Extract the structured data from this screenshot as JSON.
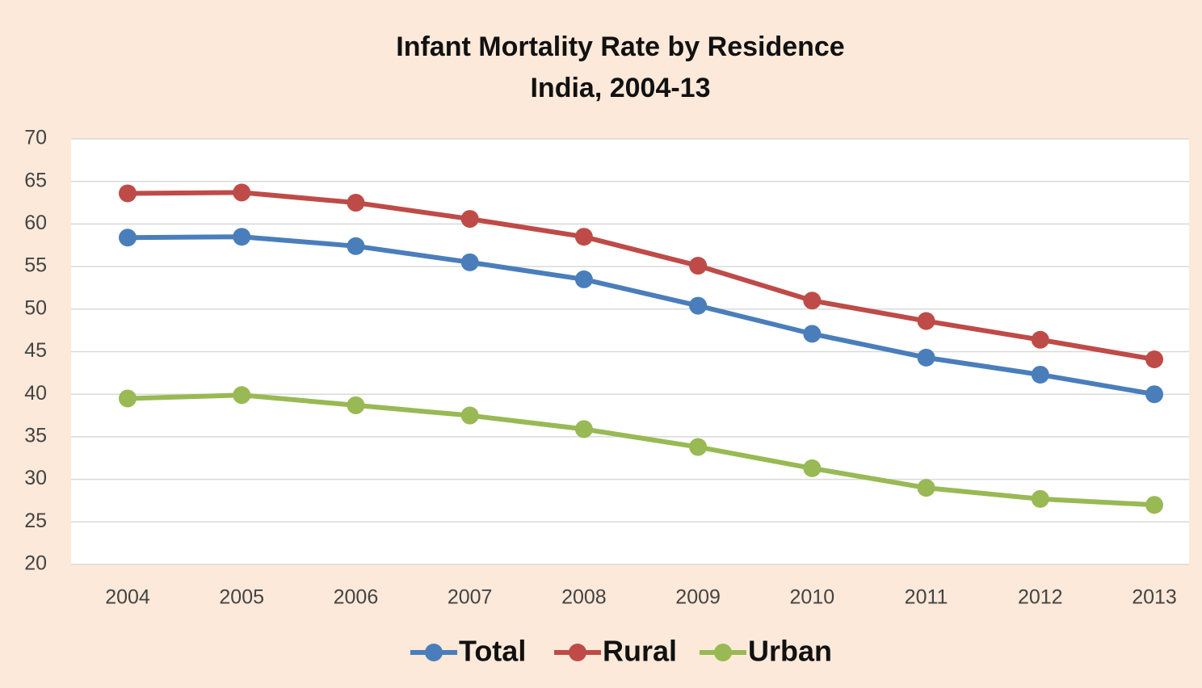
{
  "chart_data": {
    "type": "line",
    "title": "Infant Mortality Rate by Residence",
    "subtitle": "India, 2004-13",
    "categories": [
      "2004",
      "2005",
      "2006",
      "2007",
      "2008",
      "2009",
      "2010",
      "2011",
      "2012",
      "2013"
    ],
    "series": [
      {
        "name": "Total",
        "color": "#4a7ebb",
        "values": [
          58.4,
          58.5,
          57.4,
          55.5,
          53.5,
          50.4,
          47.1,
          44.3,
          42.3,
          40.0
        ]
      },
      {
        "name": "Rural",
        "color": "#be4b48",
        "values": [
          63.6,
          63.7,
          62.5,
          60.6,
          58.5,
          55.1,
          51.0,
          48.6,
          46.4,
          44.1
        ]
      },
      {
        "name": "Urban",
        "color": "#98b954",
        "values": [
          39.5,
          39.9,
          38.7,
          37.5,
          35.9,
          33.8,
          31.3,
          29.0,
          27.7,
          27.0
        ]
      }
    ],
    "ylim": [
      20,
      70
    ],
    "yticks": [
      20,
      25,
      30,
      35,
      40,
      45,
      50,
      55,
      60,
      65,
      70
    ],
    "grid": true,
    "legend": "bottom"
  }
}
